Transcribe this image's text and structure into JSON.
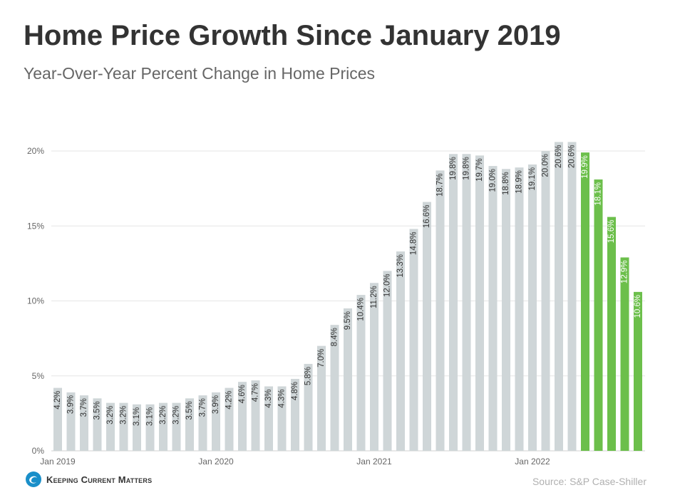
{
  "chart_data": {
    "type": "bar",
    "title": "Home Price Growth Since January 2019",
    "subtitle": "Year-Over-Year Percent Change in Home Prices",
    "xlabel": "",
    "ylabel": "",
    "ylim": [
      0,
      20
    ],
    "yticks": [
      "0%",
      "5%",
      "10%",
      "15%",
      "20%"
    ],
    "ytick_values": [
      0,
      5,
      10,
      15,
      20
    ],
    "xticks": [
      {
        "label": "Jan 2019",
        "index": 0
      },
      {
        "label": "Jan 2020",
        "index": 12
      },
      {
        "label": "Jan 2021",
        "index": 24
      },
      {
        "label": "Jan 2022",
        "index": 36
      }
    ],
    "values": [
      4.2,
      3.9,
      3.7,
      3.5,
      3.2,
      3.2,
      3.1,
      3.1,
      3.2,
      3.2,
      3.5,
      3.7,
      3.9,
      4.2,
      4.6,
      4.7,
      4.3,
      4.3,
      4.8,
      5.8,
      7.0,
      8.4,
      9.5,
      10.4,
      11.2,
      12.0,
      13.3,
      14.8,
      16.6,
      18.7,
      19.8,
      19.8,
      19.7,
      19.0,
      18.8,
      18.9,
      19.1,
      20.0,
      20.6,
      20.6,
      19.9,
      18.1,
      15.6,
      12.9,
      10.6
    ],
    "labels": [
      "4.2%",
      "3.9%",
      "3.7%",
      "3.5%",
      "3.2%",
      "3.2%",
      "3.1%",
      "3.1%",
      "3.2%",
      "3.2%",
      "3.5%",
      "3.7%",
      "3.9%",
      "4.2%",
      "4.6%",
      "4.7%",
      "4.3%",
      "4.3%",
      "4.8%",
      "5.8%",
      "7.0%",
      "8.4%",
      "9.5%",
      "10.4%",
      "11.2%",
      "12.0%",
      "13.3%",
      "14.8%",
      "16.6%",
      "18.7%",
      "19.8%",
      "19.8%",
      "19.7%",
      "19.0%",
      "18.8%",
      "18.9%",
      "19.1%",
      "20.0%",
      "20.6%",
      "20.6%",
      "19.9%",
      "18.1%",
      "15.6%",
      "12.9%",
      "10.6%"
    ],
    "highlight_from_index": 40,
    "colors": {
      "bar": "#cfd6d8",
      "highlight": "#6cbf4b",
      "label_dark": "#333333",
      "label_light": "#ffffff",
      "grid": "#e6e6e6",
      "axis_text": "#666666"
    }
  },
  "source": "Source:  S&P Case-Shiller",
  "logo": {
    "text": "Keeping Current Matters",
    "icon": "kcm-swirl-icon",
    "color": "#1a8fc9"
  }
}
